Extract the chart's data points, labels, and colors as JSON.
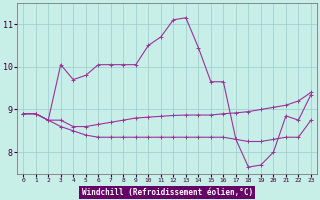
{
  "xlabel": "Windchill (Refroidissement éolien,°C)",
  "background_color": "#c8eee8",
  "grid_color": "#99cccc",
  "line_color": "#993399",
  "xlabel_bg": "#660066",
  "xlabel_fg": "#ffffff",
  "xlim": [
    -0.5,
    23.5
  ],
  "ylim": [
    7.5,
    11.5
  ],
  "xticks": [
    0,
    1,
    2,
    3,
    4,
    5,
    6,
    7,
    8,
    9,
    10,
    11,
    12,
    13,
    14,
    15,
    16,
    17,
    18,
    19,
    20,
    21,
    22,
    23
  ],
  "yticks": [
    8,
    9,
    10,
    11
  ],
  "line1_x": [
    0,
    1,
    2,
    3,
    4,
    5,
    6,
    7,
    8,
    9,
    10,
    11,
    12,
    13,
    14,
    15,
    16,
    17,
    18,
    19,
    20,
    21,
    22,
    23
  ],
  "line1_y": [
    8.9,
    8.9,
    8.75,
    10.05,
    9.7,
    9.8,
    10.05,
    10.05,
    10.05,
    10.05,
    10.5,
    10.7,
    11.1,
    11.15,
    10.45,
    9.65,
    9.65,
    8.3,
    7.65,
    7.7,
    8.0,
    8.85,
    8.75,
    9.35
  ],
  "line2_x": [
    0,
    1,
    2,
    3,
    4,
    5,
    6,
    7,
    8,
    9,
    10,
    11,
    12,
    13,
    14,
    15,
    16,
    17,
    18,
    19,
    20,
    21,
    22,
    23
  ],
  "line2_y": [
    8.9,
    8.9,
    8.75,
    8.75,
    8.6,
    8.6,
    8.65,
    8.7,
    8.75,
    8.8,
    8.82,
    8.84,
    8.86,
    8.87,
    8.87,
    8.87,
    8.9,
    8.92,
    8.95,
    9.0,
    9.05,
    9.1,
    9.2,
    9.4
  ],
  "line3_x": [
    0,
    1,
    2,
    3,
    4,
    5,
    6,
    7,
    8,
    9,
    10,
    11,
    12,
    13,
    14,
    15,
    16,
    17,
    18,
    19,
    20,
    21,
    22,
    23
  ],
  "line3_y": [
    8.9,
    8.9,
    8.75,
    8.6,
    8.5,
    8.4,
    8.35,
    8.35,
    8.35,
    8.35,
    8.35,
    8.35,
    8.35,
    8.35,
    8.35,
    8.35,
    8.35,
    8.3,
    8.25,
    8.25,
    8.3,
    8.35,
    8.35,
    8.75
  ]
}
